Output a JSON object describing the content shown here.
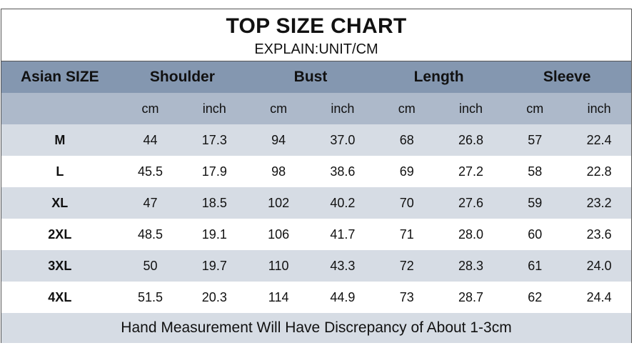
{
  "title": "TOP SIZE CHART",
  "subtitle": "EXPLAIN:UNIT/CM",
  "headers": {
    "size": "Asian SIZE",
    "groups": [
      "Shoulder",
      "Bust",
      "Length",
      "Sleeve"
    ]
  },
  "units": [
    "cm",
    "inch",
    "cm",
    "inch",
    "cm",
    "inch",
    "cm",
    "inch"
  ],
  "rows": [
    {
      "size": "M",
      "values": [
        "44",
        "17.3",
        "94",
        "37.0",
        "68",
        "26.8",
        "57",
        "22.4"
      ]
    },
    {
      "size": "L",
      "values": [
        "45.5",
        "17.9",
        "98",
        "38.6",
        "69",
        "27.2",
        "58",
        "22.8"
      ]
    },
    {
      "size": "XL",
      "values": [
        "47",
        "18.5",
        "102",
        "40.2",
        "70",
        "27.6",
        "59",
        "23.2"
      ]
    },
    {
      "size": "2XL",
      "values": [
        "48.5",
        "19.1",
        "106",
        "41.7",
        "71",
        "28.0",
        "60",
        "23.6"
      ]
    },
    {
      "size": "3XL",
      "values": [
        "50",
        "19.7",
        "110",
        "43.3",
        "72",
        "28.3",
        "61",
        "24.0"
      ]
    },
    {
      "size": "4XL",
      "values": [
        "51.5",
        "20.3",
        "114",
        "44.9",
        "73",
        "28.7",
        "62",
        "24.4"
      ]
    }
  ],
  "footer": "Hand Measurement Will Have Discrepancy of About 1-3cm",
  "colors": {
    "header_bg": "#8497b0",
    "units_bg": "#adb9ca",
    "shaded_row_bg": "#d6dce4",
    "plain_row_bg": "#ffffff"
  }
}
